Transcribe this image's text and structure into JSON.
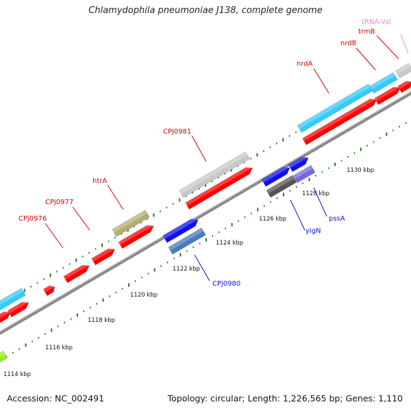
{
  "title": "Chlamydophila pneumoniae J138, complete genome",
  "footer": {
    "accession": "Accession: NC_002491",
    "summary": "Topology: circular; Length: 1,226,565 bp; Genes: 1,110"
  },
  "colors": {
    "forward_gene": "#ff0000",
    "cyan_gene": "#33ccff",
    "grey_gene": "#c8c8c8",
    "olive_gene": "#b5b070",
    "blue_gene": "#1010ee",
    "steel_gene": "#4a7ab8",
    "darkgrey_gene": "#555555",
    "violet_gene": "#7766dd",
    "trna_label": "#ee88cc",
    "tick": "#1f7a1f",
    "backbone": "#888888"
  },
  "kbp_ticks": [
    "1114 kbp",
    "1116 kbp",
    "1118 kbp",
    "1120 kbp",
    "1122 kbp",
    "1124 kbp",
    "1126 kbp",
    "1128 kbp",
    "1130 kbp"
  ],
  "gene_labels": {
    "trna_val": "tRNA-Val",
    "trmB": "trmB",
    "nrdB": "nrdB",
    "nrdA": "nrdA",
    "cpj0981": "CPj0981",
    "htrA": "htrA",
    "cpj0977": "CPj0977",
    "cpj0976": "CPj0976",
    "pssA": "pssA",
    "yigN": "yigN",
    "cpj0980": "CPj0980"
  }
}
